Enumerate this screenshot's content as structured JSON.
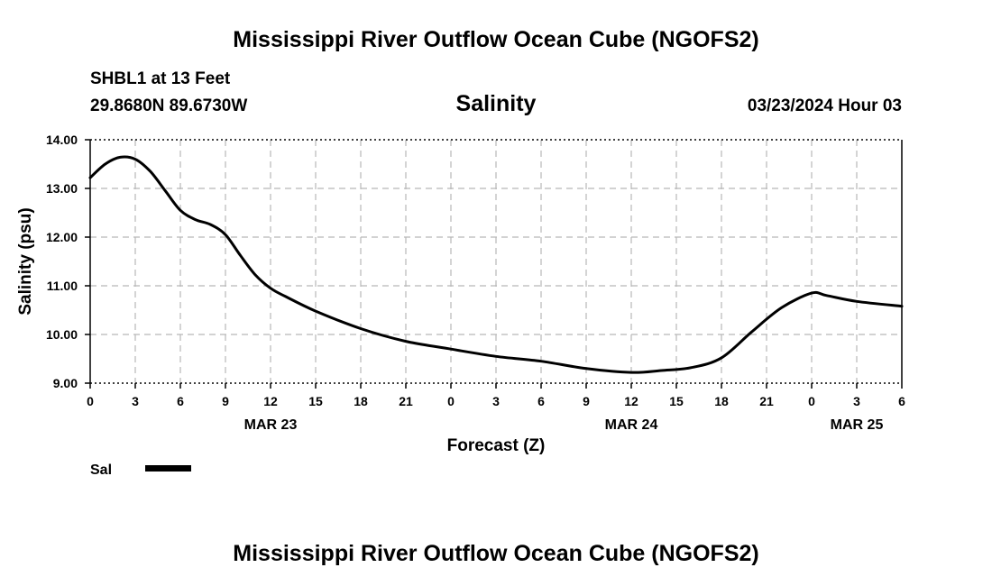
{
  "header": {
    "title": "Mississippi River Outflow Ocean Cube (NGOFS2)",
    "station": "SHBL1 at 13 Feet",
    "coords": "29.8680N  89.6730W",
    "variable": "Salinity",
    "datetime": "03/23/2024 Hour 03"
  },
  "footer": {
    "title": "Mississippi River Outflow Ocean Cube (NGOFS2)"
  },
  "legend": {
    "label": "Sal"
  },
  "chart_data": {
    "type": "line",
    "title": "Salinity",
    "xlabel": "Forecast (Z)",
    "ylabel": "Salinity (psu)",
    "xlim": [
      0,
      54
    ],
    "ylim": [
      9.0,
      14.0
    ],
    "grid": true,
    "y_ticks": [
      {
        "value": 9,
        "label": "9.00"
      },
      {
        "value": 10,
        "label": "10.00"
      },
      {
        "value": 11,
        "label": "11.00"
      },
      {
        "value": 12,
        "label": "12.00"
      },
      {
        "value": 13,
        "label": "13.00"
      },
      {
        "value": 14,
        "label": "14.00"
      }
    ],
    "x_ticks": [
      {
        "value": 0,
        "label": "0"
      },
      {
        "value": 3,
        "label": "3"
      },
      {
        "value": 6,
        "label": "6"
      },
      {
        "value": 9,
        "label": "9"
      },
      {
        "value": 12,
        "label": "12"
      },
      {
        "value": 15,
        "label": "15"
      },
      {
        "value": 18,
        "label": "18"
      },
      {
        "value": 21,
        "label": "21"
      },
      {
        "value": 24,
        "label": "0"
      },
      {
        "value": 27,
        "label": "3"
      },
      {
        "value": 30,
        "label": "6"
      },
      {
        "value": 33,
        "label": "9"
      },
      {
        "value": 36,
        "label": "12"
      },
      {
        "value": 39,
        "label": "15"
      },
      {
        "value": 42,
        "label": "18"
      },
      {
        "value": 45,
        "label": "21"
      },
      {
        "value": 48,
        "label": "0"
      },
      {
        "value": 51,
        "label": "3"
      },
      {
        "value": 54,
        "label": "6"
      }
    ],
    "day_labels": [
      {
        "value": 12,
        "label": "MAR 23"
      },
      {
        "value": 36,
        "label": "MAR 24"
      },
      {
        "value": 51,
        "label": "MAR 25"
      }
    ],
    "series": [
      {
        "name": "Sal",
        "x": [
          0,
          1,
          2,
          3,
          4,
          5,
          6,
          7,
          8,
          9,
          10,
          11,
          12,
          13,
          15,
          18,
          21,
          24,
          27,
          30,
          33,
          36,
          38,
          40,
          42,
          44,
          46,
          48,
          49,
          51,
          54
        ],
        "values": [
          13.22,
          13.5,
          13.64,
          13.6,
          13.35,
          12.95,
          12.55,
          12.36,
          12.26,
          12.05,
          11.62,
          11.22,
          10.95,
          10.78,
          10.48,
          10.12,
          9.86,
          9.7,
          9.55,
          9.45,
          9.3,
          9.22,
          9.26,
          9.32,
          9.52,
          10.05,
          10.55,
          10.85,
          10.8,
          10.68,
          10.58
        ]
      }
    ]
  }
}
